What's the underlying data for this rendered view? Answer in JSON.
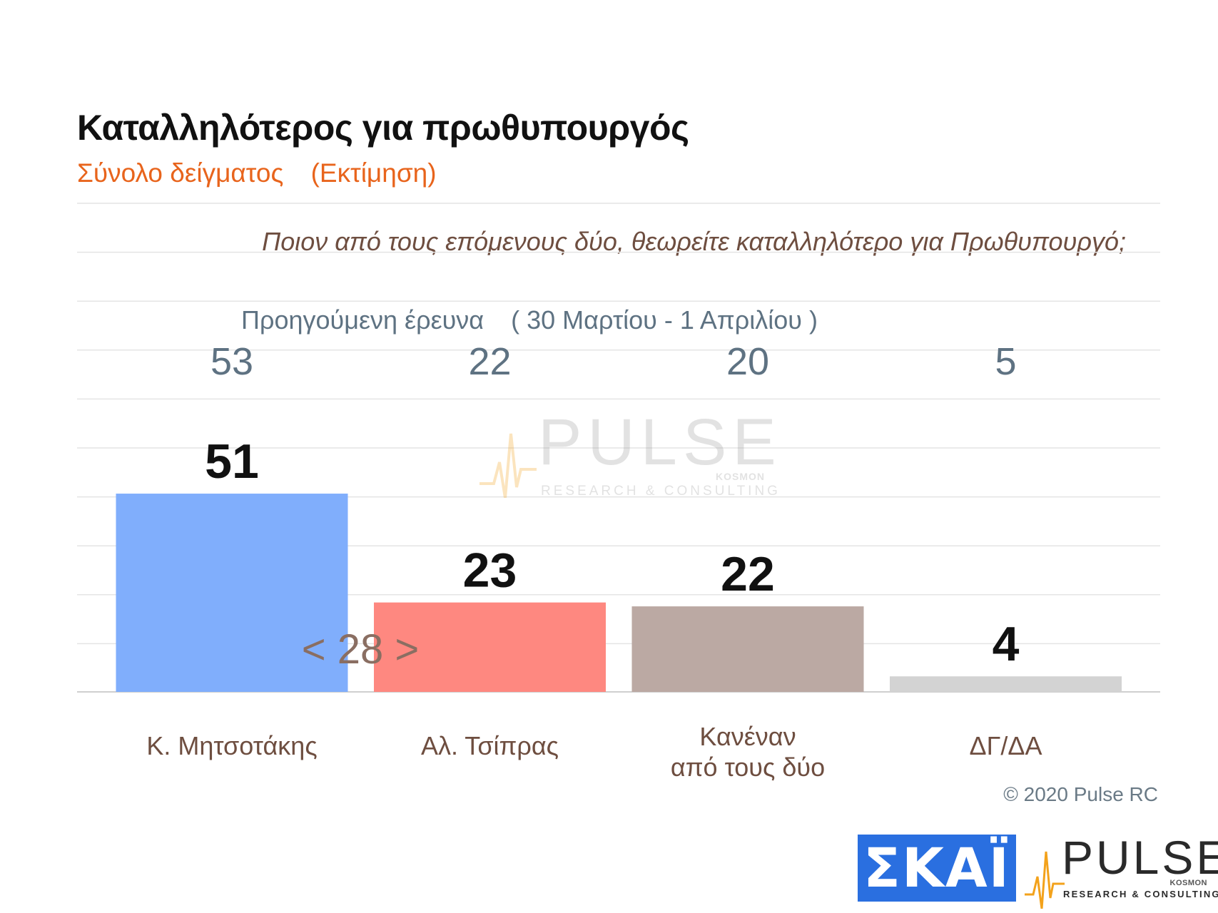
{
  "header": {
    "title": "Καταλληλότερος για πρωθυπουργός",
    "subtitle": "Σύνολο δείγματος",
    "estimate_label": "(Εκτίμηση)"
  },
  "question": "Ποιον από τους επόμενους δύο, θεωρείτε καταλληλότερο για Πρωθυπουργό;",
  "previous": {
    "label": "Προηγούμενη έρευνα",
    "dates": "( 30 Μαρτίου - 1 Απριλίου )"
  },
  "chart_data": {
    "type": "bar",
    "title": "Καταλληλότερος για πρωθυπουργός",
    "categories": [
      [
        "Κ. Μητσοτάκης"
      ],
      [
        "Αλ. Τσίπρας"
      ],
      [
        "Κανέναν",
        "από τους δύο"
      ],
      [
        "ΔΓ/ΔΑ"
      ]
    ],
    "values": [
      51,
      23,
      22,
      4
    ],
    "value_labels": [
      "51",
      "23",
      "22",
      "4"
    ],
    "previous_values": [
      53,
      22,
      20,
      5
    ],
    "previous_value_labels": [
      "53",
      "22",
      "20",
      "5"
    ],
    "colors": [
      "#80aefc",
      "#fe8880",
      "#bba9a3",
      "#d3d3d3"
    ],
    "difference_label": "< 28 >",
    "ylim": [
      0,
      60
    ],
    "grid": true,
    "xlabel": "",
    "ylabel": ""
  },
  "colors": {
    "title": "#111111",
    "subtitle": "#e8641c",
    "question": "#6e4e40",
    "previous": "#5e7282",
    "category_label": "#6e4e40",
    "difference_label": "#8a6e62",
    "grid": "#e4e4e4",
    "skai_blue": "#2a6fe0",
    "pulse_orange": "#f3a21b"
  },
  "footer": {
    "copyright": "© 2020 Pulse RC",
    "skai_logo": "ΣΚΑΪ",
    "pulse_logo": "PULSE",
    "pulse_sub": "RESEARCH & CONSULTING",
    "pulse_kosmon": "KOSMON"
  },
  "icons": {
    "pulse_mark": "heartbeat-line-icon"
  }
}
